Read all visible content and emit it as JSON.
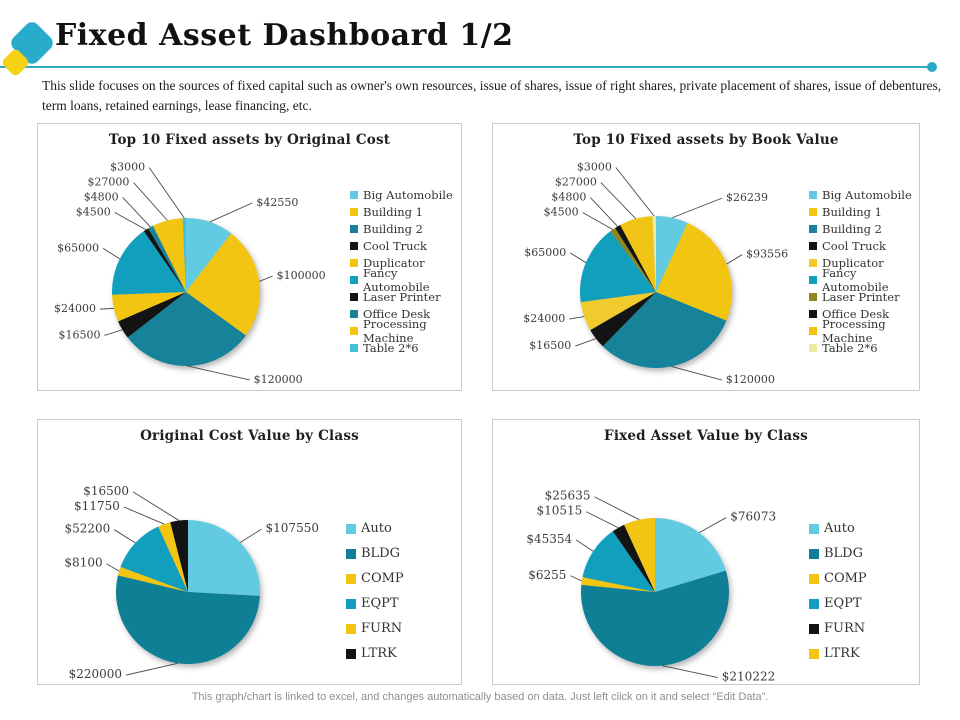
{
  "slide": {
    "title": "Fixed Asset Dashboard 1/2",
    "description": "This slide focuses on the sources of fixed capital such as owner's own resources, issue of shares, issue of right shares, private placement of shares, issue of debentures, term loans, retained earnings, lease financing, etc.",
    "footer": "This graph/chart is linked to excel, and changes automatically based on data. Just left click on it and select “Edit Data”.",
    "accent_teal": "#29accb",
    "accent_yellow": "#f7d117",
    "currency_prefix": "$"
  },
  "chart_data": [
    {
      "type": "pie",
      "title": "Top 10 Fixed assets by Original Cost",
      "categories": [
        "Big Automobile",
        "Building 1",
        "Building 2",
        "Cool Truck",
        "Duplicator",
        "Fancy Automobile",
        "Laser Printer",
        "Office Desk",
        "Processing Machine",
        "Table 2*6"
      ],
      "values": [
        42550,
        100000,
        120000,
        16500,
        24000,
        65000,
        4500,
        4800,
        27000,
        3000
      ],
      "colors": [
        "#63cbe1",
        "#f2c512",
        "#16839b",
        "#131313",
        "#f2c512",
        "#129fbe",
        "#131313",
        "#16839b",
        "#f2c512",
        "#45bfd6"
      ],
      "legend_position": "right",
      "data_labels": "outside-with-leader-lines"
    },
    {
      "type": "pie",
      "title": "Top 10 Fixed assets by Book Value",
      "categories": [
        "Big Automobile",
        "Building 1",
        "Building 2",
        "Cool Truck",
        "Duplicator",
        "Fancy Automobile",
        "Laser Printer",
        "Office Desk",
        "Processing Machine",
        "Table 2*6"
      ],
      "values": [
        26239,
        93556,
        120000,
        16500,
        24000,
        65000,
        4500,
        4800,
        27000,
        3000
      ],
      "colors": [
        "#63cbe1",
        "#f2c512",
        "#16839b",
        "#131313",
        "#efcb2d",
        "#129fbe",
        "#8f861f",
        "#131313",
        "#efc414",
        "#f0e9a0"
      ],
      "legend_position": "right",
      "data_labels": "outside-with-leader-lines"
    },
    {
      "type": "pie",
      "title": "Original Cost Value by Class",
      "categories": [
        "Auto",
        "BLDG",
        "COMP",
        "EQPT",
        "FURN",
        "LTRK"
      ],
      "values": [
        107550,
        220000,
        8100,
        52200,
        11750,
        16500
      ],
      "colors": [
        "#63cbe1",
        "#0f7f96",
        "#f2c512",
        "#129fbe",
        "#f2c512",
        "#131313"
      ],
      "legend_position": "right",
      "data_labels": "outside-with-leader-lines"
    },
    {
      "type": "pie",
      "title": "Fixed Asset Value by Class",
      "categories": [
        "Auto",
        "BLDG",
        "COMP",
        "EQPT",
        "FURN",
        "LTRK"
      ],
      "values": [
        76073,
        210222,
        6255,
        45354,
        10515,
        25635
      ],
      "colors": [
        "#63cbe1",
        "#0f7f96",
        "#f2c512",
        "#129fbe",
        "#131313",
        "#f2c512"
      ],
      "legend_position": "right",
      "data_labels": "outside-with-leader-lines"
    }
  ]
}
